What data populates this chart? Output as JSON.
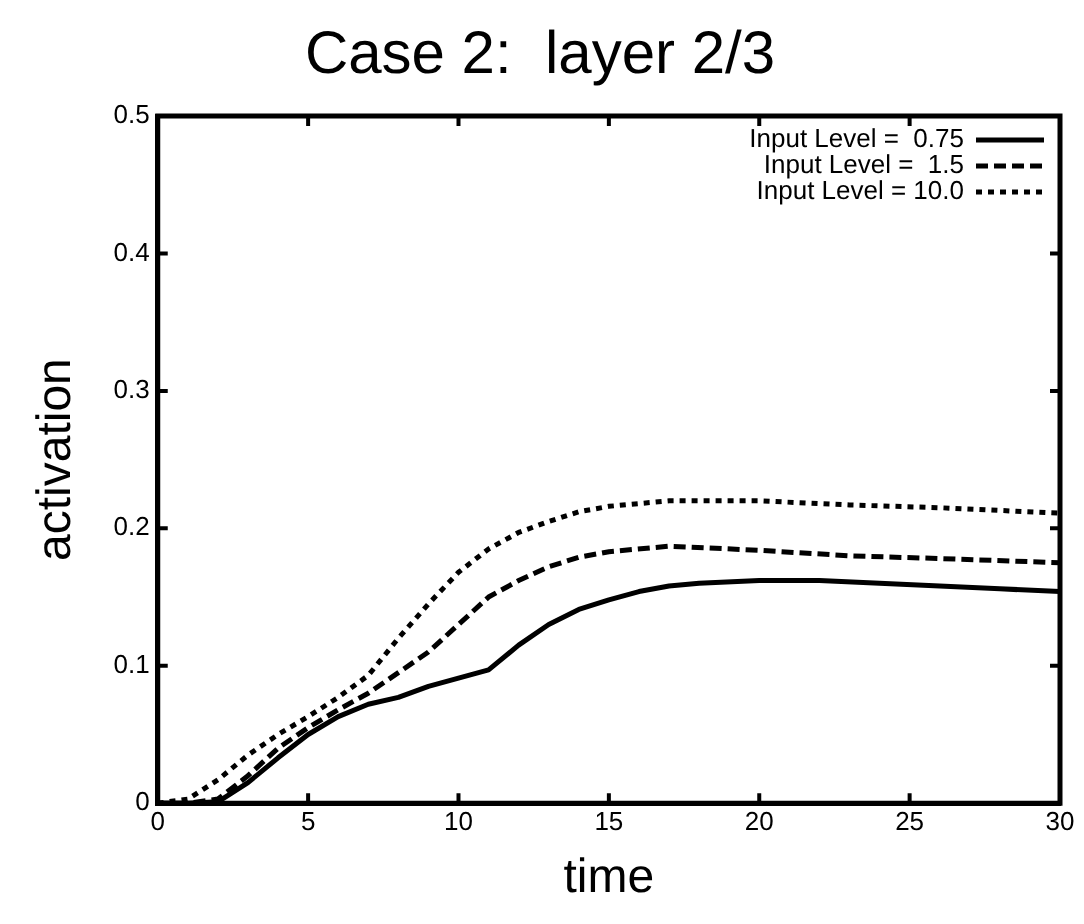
{
  "chart_data": {
    "type": "line",
    "title": "Case 2:  layer 2/3",
    "xlabel": "time",
    "ylabel": "activation",
    "xlim": [
      0,
      30
    ],
    "xticks": [
      0,
      5,
      10,
      15,
      20,
      25,
      30
    ],
    "ylim": [
      0,
      0.5
    ],
    "yticks": [
      0,
      0.1,
      0.2,
      0.3,
      0.4,
      0.5
    ],
    "grid": false,
    "legend": "top right",
    "marker": "none",
    "series": [
      {
        "name": "Input Level =  0.75",
        "color": "#000000",
        "line_style": "solid",
        "x": [
          0,
          1,
          2,
          3,
          4,
          5,
          6,
          7,
          8,
          9,
          10,
          11,
          12,
          13,
          14,
          15,
          16,
          17,
          18,
          20,
          22,
          24,
          26,
          28,
          30
        ],
        "values": [
          0,
          0,
          0.001,
          0.015,
          0.033,
          0.05,
          0.063,
          0.072,
          0.077,
          0.085,
          0.091,
          0.097,
          0.115,
          0.13,
          0.141,
          0.148,
          0.154,
          0.158,
          0.16,
          0.162,
          0.162,
          0.16,
          0.158,
          0.156,
          0.154
        ]
      },
      {
        "name": "Input Level =  1.5",
        "color": "#000000",
        "line_style": "dashed",
        "x": [
          0,
          1,
          2,
          3,
          4,
          5,
          6,
          7,
          8,
          9,
          10,
          11,
          12,
          13,
          14,
          15,
          17,
          20,
          23,
          26,
          30
        ],
        "values": [
          0,
          0,
          0.003,
          0.02,
          0.04,
          0.055,
          0.068,
          0.08,
          0.095,
          0.11,
          0.13,
          0.15,
          0.162,
          0.172,
          0.179,
          0.183,
          0.187,
          0.184,
          0.18,
          0.178,
          0.175
        ]
      },
      {
        "name": "Input Level = 10.0",
        "color": "#000000",
        "line_style": "dotted",
        "x": [
          0,
          1,
          2,
          3,
          4,
          5,
          6,
          7,
          8,
          9,
          10,
          11,
          12,
          13,
          14,
          15,
          17,
          20,
          23,
          26,
          30
        ],
        "values": [
          0,
          0.003,
          0.017,
          0.035,
          0.05,
          0.063,
          0.077,
          0.093,
          0.12,
          0.145,
          0.168,
          0.185,
          0.197,
          0.205,
          0.212,
          0.216,
          0.22,
          0.22,
          0.217,
          0.215,
          0.211
        ]
      }
    ]
  }
}
